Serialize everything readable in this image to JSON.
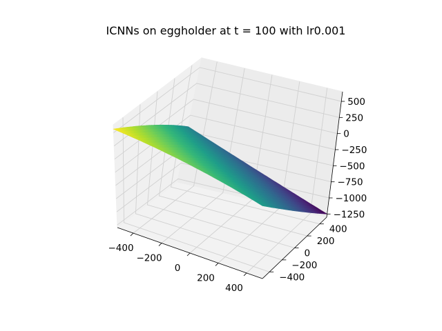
{
  "chart_data": {
    "type": "surface",
    "title": "ICNNs on eggholder at t = 100 with lr0.001",
    "xlabel": "",
    "ylabel": "",
    "zlabel": "",
    "xlim": [
      -512,
      512
    ],
    "ylim": [
      -512,
      512
    ],
    "zlim": [
      -1300,
      650
    ],
    "x_ticks": [
      -400,
      -200,
      0,
      200,
      400
    ],
    "y_ticks": [
      -400,
      -200,
      0,
      200,
      400
    ],
    "z_ticks": [
      -1250,
      -1000,
      -750,
      -500,
      -250,
      0,
      250,
      500
    ],
    "x_tick_labels": [
      "−400",
      "−200",
      "0",
      "200",
      "400"
    ],
    "y_tick_labels": [
      "−400",
      "−200",
      "0",
      "200",
      "400"
    ],
    "z_tick_labels": [
      "−1250",
      "−1000",
      "−750",
      "−500",
      "−250",
      "0",
      "250",
      "500"
    ],
    "surface_corners": [
      {
        "x": -512,
        "y": -512,
        "z": 570
      },
      {
        "x": 512,
        "y": -512,
        "z": -250
      },
      {
        "x": 512,
        "y": 512,
        "z": -1250
      },
      {
        "x": -512,
        "y": 512,
        "z": -430
      }
    ],
    "colormap": "viridis",
    "grid": true
  }
}
